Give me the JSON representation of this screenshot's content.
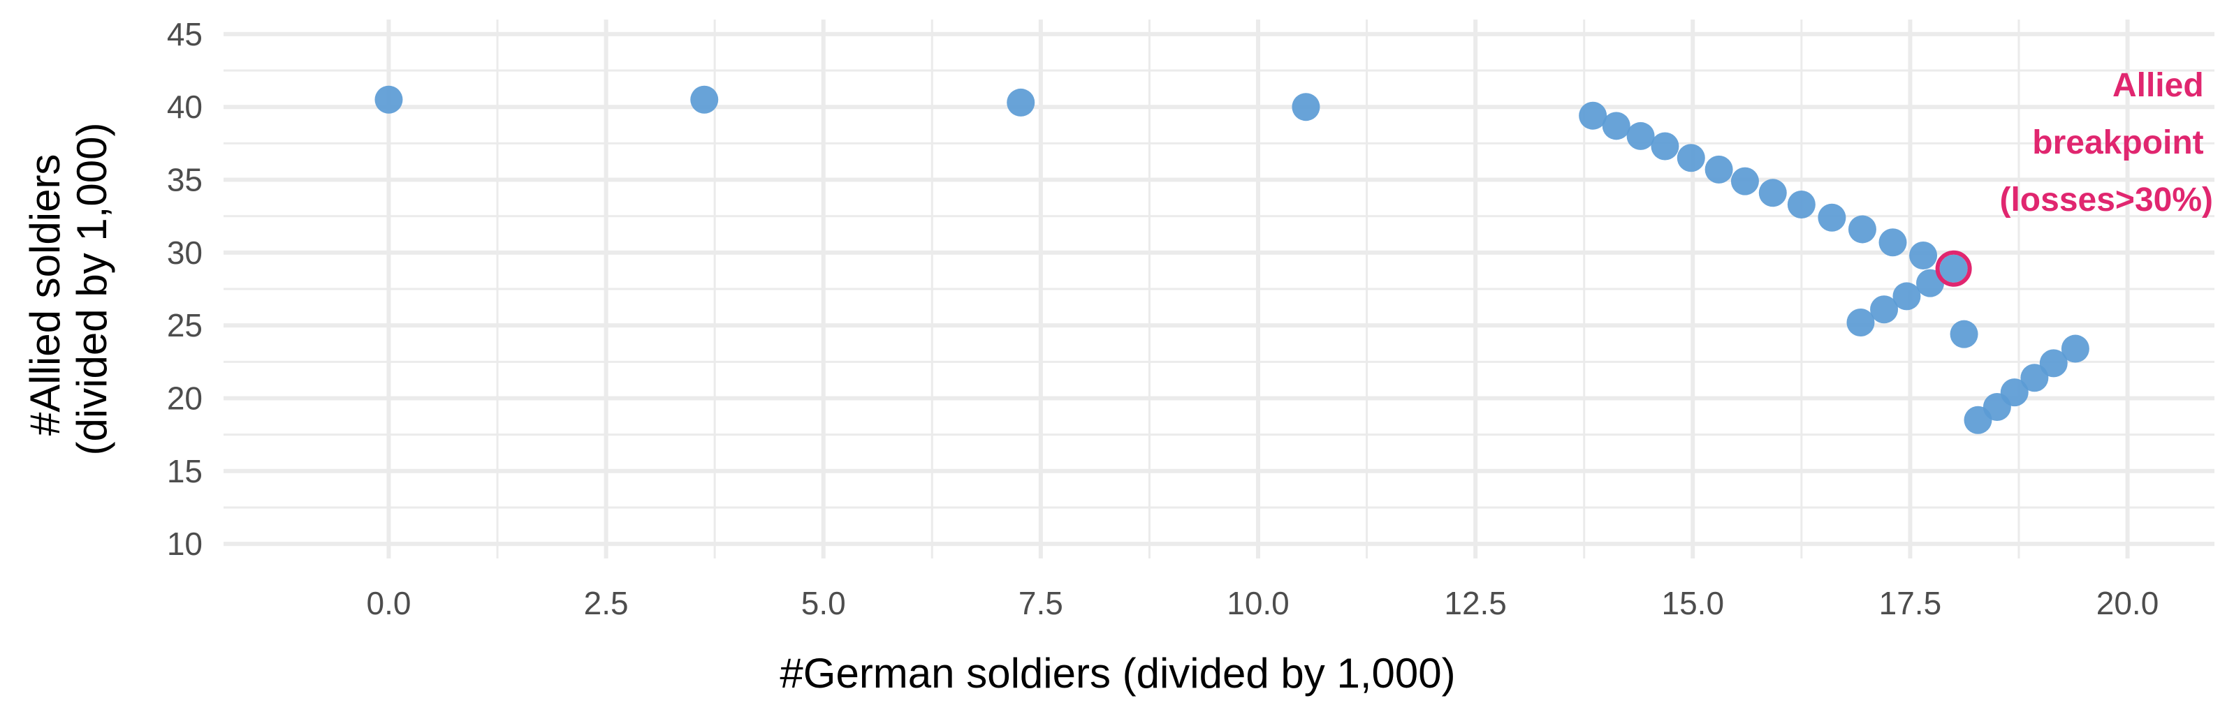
{
  "chart_data": {
    "type": "scatter",
    "xlabel": "#German soldiers (divided by 1,000)",
    "ylabel_lines": [
      "#Allied soldiers",
      "(divided by 1,000)"
    ],
    "xlim": [
      -1.9,
      21.0
    ],
    "ylim": [
      9.0,
      46.0
    ],
    "xticks": [
      0.0,
      2.5,
      5.0,
      7.5,
      10.0,
      12.5,
      15.0,
      17.5,
      20.0
    ],
    "xtick_labels": [
      "0.0",
      "2.5",
      "5.0",
      "7.5",
      "10.0",
      "12.5",
      "15.0",
      "17.5",
      "20.0"
    ],
    "yticks": [
      10,
      15,
      20,
      25,
      30,
      35,
      40,
      45
    ],
    "ytick_labels": [
      "10",
      "15",
      "20",
      "25",
      "30",
      "35",
      "40",
      "45"
    ],
    "grid": true,
    "point_color": "#5b9bd5",
    "highlight_color": "#e0266f",
    "points": [
      {
        "x": 0.0,
        "y": 40.5
      },
      {
        "x": 3.63,
        "y": 40.5
      },
      {
        "x": 7.27,
        "y": 40.3
      },
      {
        "x": 10.55,
        "y": 40.0
      },
      {
        "x": 13.85,
        "y": 39.4
      },
      {
        "x": 14.12,
        "y": 38.7
      },
      {
        "x": 14.4,
        "y": 38.0
      },
      {
        "x": 14.68,
        "y": 37.3
      },
      {
        "x": 14.98,
        "y": 36.5
      },
      {
        "x": 15.3,
        "y": 35.7
      },
      {
        "x": 15.6,
        "y": 34.9
      },
      {
        "x": 15.92,
        "y": 34.1
      },
      {
        "x": 16.25,
        "y": 33.3
      },
      {
        "x": 16.6,
        "y": 32.4
      },
      {
        "x": 16.95,
        "y": 31.6
      },
      {
        "x": 17.3,
        "y": 30.7
      },
      {
        "x": 17.65,
        "y": 29.8
      },
      {
        "x": 18.0,
        "y": 28.9
      },
      {
        "x": 17.73,
        "y": 27.9
      },
      {
        "x": 17.46,
        "y": 27.0
      },
      {
        "x": 17.2,
        "y": 26.1
      },
      {
        "x": 16.93,
        "y": 25.2
      },
      {
        "x": 18.12,
        "y": 24.4
      },
      {
        "x": 19.4,
        "y": 23.4
      },
      {
        "x": 19.15,
        "y": 22.4
      },
      {
        "x": 18.93,
        "y": 21.4
      },
      {
        "x": 18.7,
        "y": 20.4
      },
      {
        "x": 18.5,
        "y": 19.4
      },
      {
        "x": 18.28,
        "y": 18.5
      }
    ],
    "highlight": {
      "x": 18.0,
      "y": 28.9
    },
    "annotation": {
      "lines": [
        "Allied",
        "breakpoint",
        "(losses>30%)"
      ]
    }
  }
}
